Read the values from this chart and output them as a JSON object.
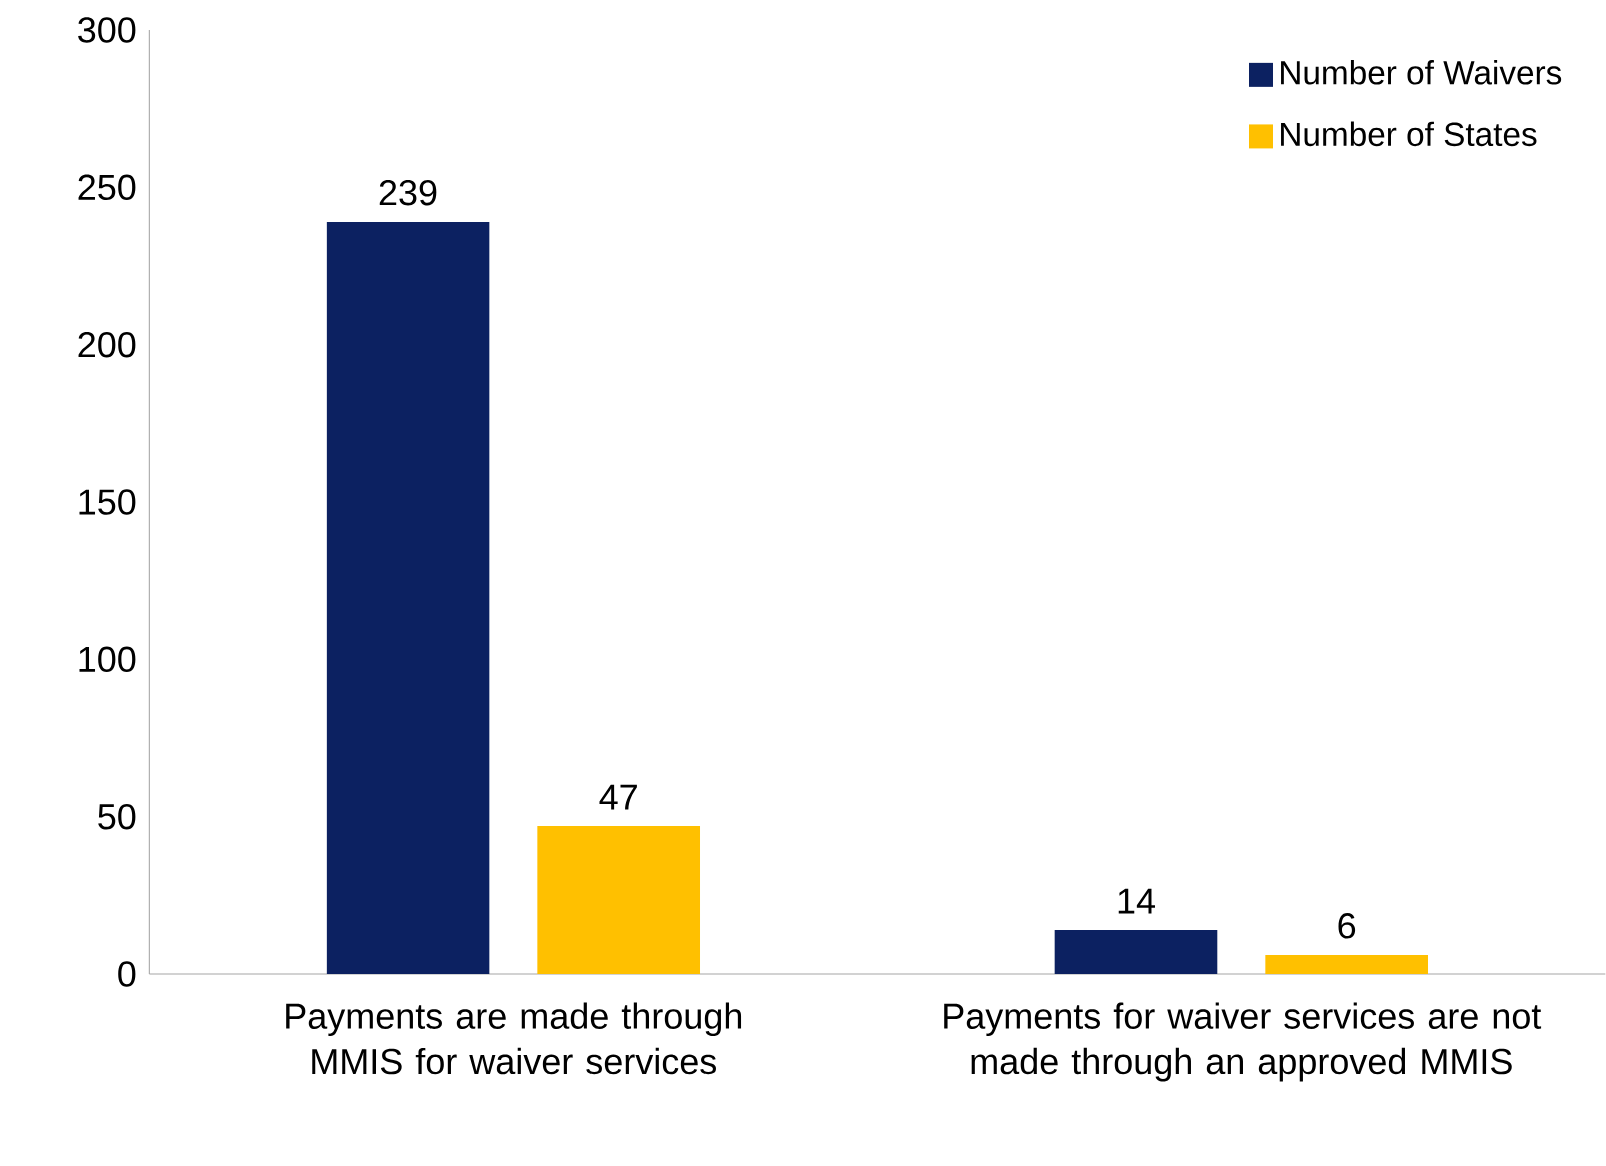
{
  "chart_data": {
    "type": "bar",
    "categories": [
      "Payments are made through MMIS for waiver services",
      "Payments for waiver services are not made through an approved MMIS"
    ],
    "series": [
      {
        "name": "Number of Waivers",
        "color": "#0c2161",
        "values": [
          239,
          14
        ]
      },
      {
        "name": "Number of States",
        "color": "#ffc000",
        "values": [
          47,
          6
        ]
      }
    ],
    "ylim": [
      0,
      300
    ],
    "yticks": [
      0,
      50,
      100,
      150,
      200,
      250,
      300
    ],
    "data_labels": true,
    "legend": "top right",
    "grid": false
  }
}
